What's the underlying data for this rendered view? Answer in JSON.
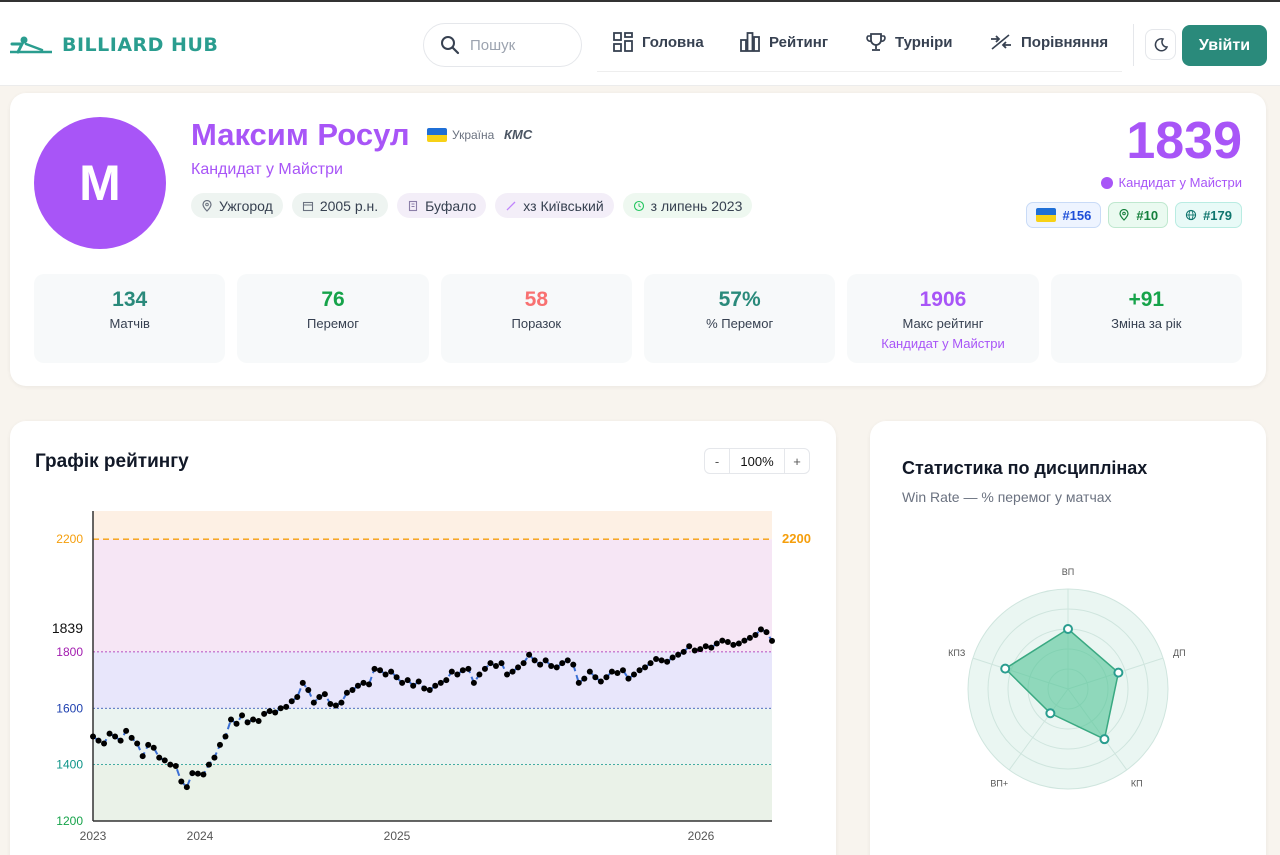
{
  "header": {
    "logo_text": "BILLIARD HUB",
    "search_placeholder": "Пошук",
    "nav": [
      {
        "label": "Головна",
        "icon": "dashboard-icon"
      },
      {
        "label": "Рейтинг",
        "icon": "bar-chart-icon"
      },
      {
        "label": "Турніри",
        "icon": "trophy-icon"
      },
      {
        "label": "Порівняння",
        "icon": "compare-icon"
      }
    ],
    "login_label": "Увійти"
  },
  "profile": {
    "avatar_letter": "M",
    "name": "Максим Росул",
    "country": "Україна",
    "title": "КМС",
    "rank_name": "Кандидат у Майстри",
    "chips": [
      {
        "icon": "location-icon",
        "text": "Ужгород"
      },
      {
        "icon": "calendar-icon",
        "text": "2005 р.н."
      },
      {
        "icon": "building-icon",
        "text": "Буфало"
      },
      {
        "icon": "cue-icon",
        "text": "хз Київський"
      },
      {
        "icon": "clock-icon",
        "text": "з липень 2023"
      }
    ],
    "rating": "1839",
    "rating_rank": "Кандидат у Майстри",
    "badges": [
      {
        "icon": "flag-icon",
        "text": "#156"
      },
      {
        "icon": "pin-icon",
        "text": "#10"
      },
      {
        "icon": "globe-icon",
        "text": "#179"
      }
    ]
  },
  "stats": [
    {
      "value": "134",
      "label": "Матчів",
      "color": "#2a8a7b"
    },
    {
      "value": "76",
      "label": "Перемог",
      "color": "#16a34a"
    },
    {
      "value": "58",
      "label": "Поразок",
      "color": "#f87171"
    },
    {
      "value": "57%",
      "label": "% Перемог",
      "color": "#2a8a7b"
    },
    {
      "value": "1906",
      "label": "Макс рейтинг",
      "sub": "Кандидат у Майстри",
      "color": "#a855f7"
    },
    {
      "value": "+91",
      "label": "Зміна за рік",
      "color": "#16a34a"
    }
  ],
  "rating_chart": {
    "title": "Графік рейтингу",
    "zoom_minus": "-",
    "zoom_value": "100%",
    "zoom_plus": "+",
    "current_label": "1839",
    "ref_line_label": "2200",
    "colors": {
      "line": "#3b6fd4",
      "ref": "#f59e0b",
      "zone_top": "#fdf0e4",
      "zone_master": "#f6e6f5",
      "zone_cm": "#e8e6fb",
      "zone_1": "#eaf3f0",
      "zone_2": "#eaf2e8"
    }
  },
  "chart_data": {
    "type": "line",
    "xlabel": "",
    "ylabel": "",
    "ylim": [
      1200,
      2300
    ],
    "x_ticks": [
      "2023",
      "2024",
      "2025",
      "2026"
    ],
    "y_ticks": [
      {
        "value": 1200,
        "label": "1200",
        "color": "#16a34a"
      },
      {
        "value": 1400,
        "label": "1400",
        "color": "#0d9488"
      },
      {
        "value": 1600,
        "label": "1600",
        "color": "#1e40af"
      },
      {
        "value": 1800,
        "label": "1800",
        "color": "#a21caf"
      },
      {
        "value": 2200,
        "label": "2200",
        "color": "#f59e0b"
      }
    ],
    "series": [
      {
        "values": [
          1500,
          1485,
          1475,
          1510,
          1500,
          1485,
          1520,
          1495,
          1475,
          1430,
          1470,
          1460,
          1425,
          1415,
          1400,
          1395,
          1340,
          1320,
          1370,
          1368,
          1365,
          1400,
          1425,
          1470,
          1500,
          1560,
          1545,
          1575,
          1550,
          1560,
          1555,
          1580,
          1590,
          1585,
          1600,
          1605,
          1625,
          1640,
          1690,
          1665,
          1620,
          1640,
          1650,
          1615,
          1610,
          1620,
          1655,
          1665,
          1680,
          1690,
          1685,
          1740,
          1735,
          1720,
          1730,
          1710,
          1690,
          1700,
          1680,
          1695,
          1670,
          1665,
          1680,
          1690,
          1700,
          1730,
          1720,
          1735,
          1740,
          1690,
          1720,
          1740,
          1760,
          1750,
          1760,
          1720,
          1730,
          1745,
          1760,
          1790,
          1770,
          1755,
          1770,
          1750,
          1745,
          1760,
          1770,
          1755,
          1690,
          1705,
          1730,
          1710,
          1695,
          1710,
          1730,
          1725,
          1735,
          1705,
          1720,
          1735,
          1745,
          1760,
          1775,
          1770,
          1765,
          1780,
          1790,
          1800,
          1820,
          1805,
          1810,
          1820,
          1815,
          1830,
          1840,
          1835,
          1825,
          1830,
          1840,
          1850,
          1860,
          1880,
          1870,
          1839
        ]
      }
    ]
  },
  "radar": {
    "title": "Статистика по дисциплінах",
    "subtitle": "Win Rate — % перемог у матчах",
    "axes": [
      "ВП",
      "ДП",
      "КП",
      "ВП+",
      "КПЗ"
    ],
    "values": [
      60,
      53,
      62,
      30,
      66
    ]
  }
}
